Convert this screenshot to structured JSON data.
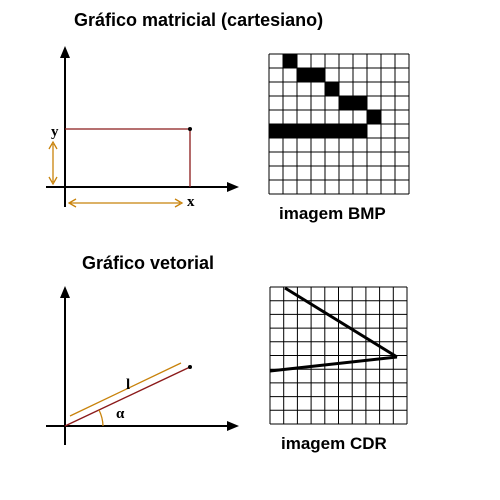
{
  "raster": {
    "title": "Gráfico matricial (cartesiano)",
    "caption": "imagem BMP",
    "axis_x_label": "x",
    "axis_y_label": "y",
    "grid": {
      "cols": 10,
      "rows": 10,
      "filled_cells": [
        [
          1,
          0
        ],
        [
          2,
          1
        ],
        [
          3,
          1
        ],
        [
          4,
          2
        ],
        [
          5,
          3
        ],
        [
          6,
          3
        ],
        [
          7,
          4
        ],
        [
          0,
          5
        ],
        [
          1,
          5
        ],
        [
          2,
          5
        ],
        [
          3,
          5
        ],
        [
          4,
          5
        ],
        [
          5,
          5
        ],
        [
          6,
          5
        ]
      ]
    }
  },
  "vector": {
    "title": "Gráfico vetorial",
    "caption": "imagem CDR",
    "length_label": "l",
    "angle_label": "α"
  },
  "colors": {
    "vector_line": "#8b1a1a",
    "guide_line": "#c8820a",
    "ink": "#000000"
  }
}
